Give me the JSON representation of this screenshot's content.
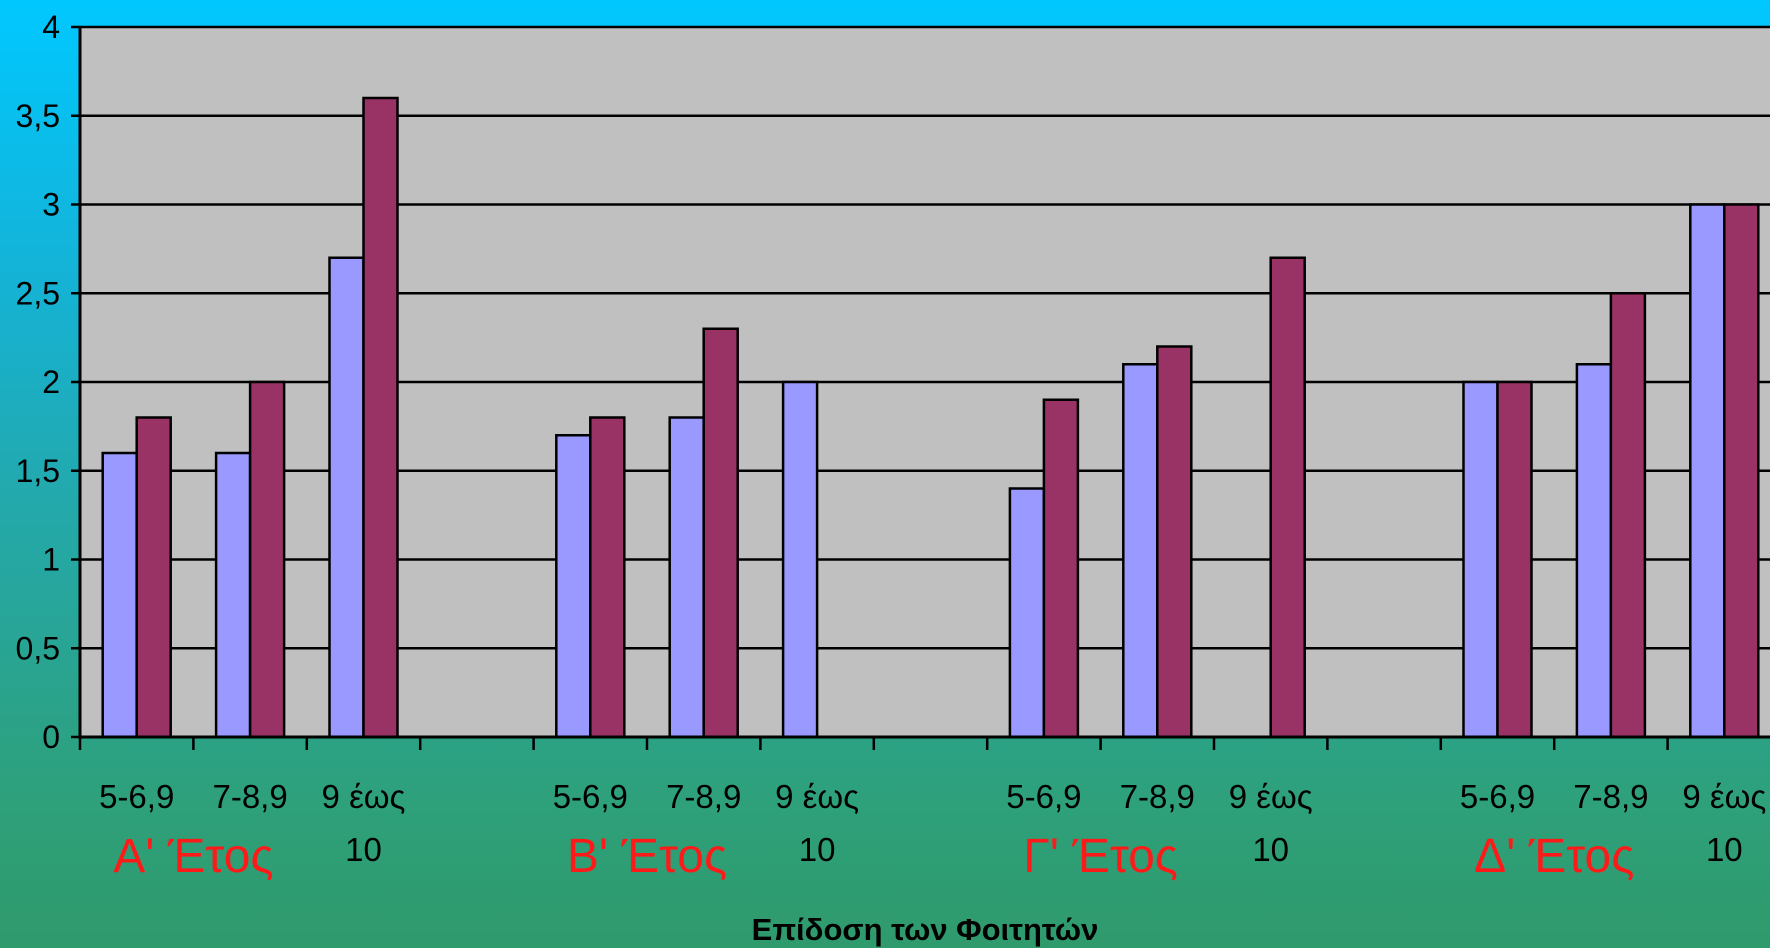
{
  "chart_data": {
    "type": "bar",
    "groups": [
      {
        "label": "Α' Έτος",
        "categories": [
          "5-6,9",
          "7-8,9",
          "9 έως 10"
        ]
      },
      {
        "label": "Β' Έτος",
        "categories": [
          "5-6,9",
          "7-8,9",
          "9 έως 10"
        ]
      },
      {
        "label": "Γ' Έτος",
        "categories": [
          "5-6,9",
          "7-8,9",
          "9 έως 10"
        ]
      },
      {
        "label": "Δ' Έτος",
        "categories": [
          "5-6,9",
          "7-8,9",
          "9 έως 10"
        ]
      }
    ],
    "categories": [
      "5-6,9",
      "7-8,9",
      "9 έως 10",
      "5-6,9",
      "7-8,9",
      "9 έως 10",
      "5-6,9",
      "7-8,9",
      "9 έως 10",
      "5-6,9",
      "7-8,9",
      "9 έως 10"
    ],
    "series": [
      {
        "color": "#9999ff",
        "values": [
          1.6,
          1.6,
          2.7,
          1.7,
          1.8,
          2.0,
          1.4,
          2.1,
          0,
          2.0,
          2.1,
          3.0
        ]
      },
      {
        "color": "#993366",
        "values": [
          1.8,
          2.0,
          3.6,
          1.8,
          2.3,
          0,
          1.9,
          2.2,
          2.7,
          2.0,
          2.5,
          3.0
        ]
      }
    ],
    "xlabel": "Επίδοση των Φοιτητών",
    "ylabel": "",
    "ylim": [
      0,
      4
    ],
    "yticks": [
      "0",
      "0,5",
      "1",
      "1,5",
      "2",
      "2,5",
      "3",
      "3,5",
      "4"
    ],
    "grid": true,
    "plot_background": "#c0c0c0"
  }
}
